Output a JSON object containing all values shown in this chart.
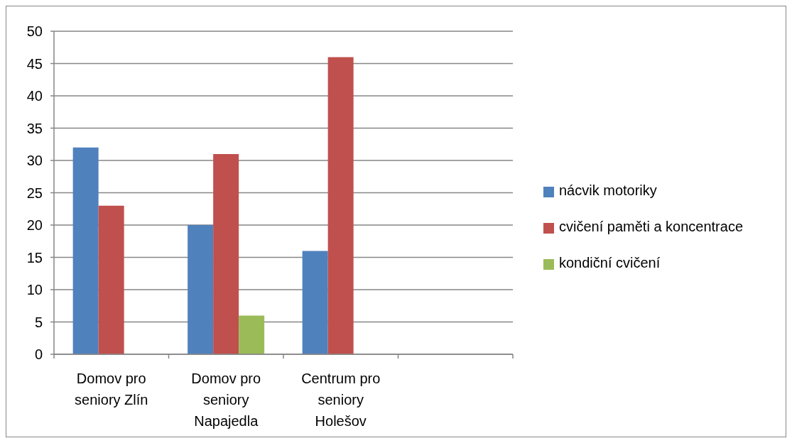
{
  "chart_data": {
    "type": "bar",
    "categories": [
      "Domov pro seniory Zlín",
      "Domov pro seniory Napajedla",
      "Centrum pro seniory Holešov",
      null
    ],
    "series": [
      {
        "name": "nácvik motoriky",
        "color": "#4f81bd",
        "values": [
          32,
          20,
          16,
          null
        ]
      },
      {
        "name": "cvičení paměti a koncentrace",
        "color": "#c0504d",
        "values": [
          23,
          31,
          46,
          null
        ]
      },
      {
        "name": "kondiční cvičení",
        "color": "#9bbb59",
        "values": [
          null,
          6,
          null,
          null
        ]
      }
    ],
    "ylim": [
      0,
      50
    ],
    "yticks": [
      0,
      5,
      10,
      15,
      20,
      25,
      30,
      35,
      40,
      45,
      50
    ],
    "grid": "y",
    "legend": "right"
  }
}
